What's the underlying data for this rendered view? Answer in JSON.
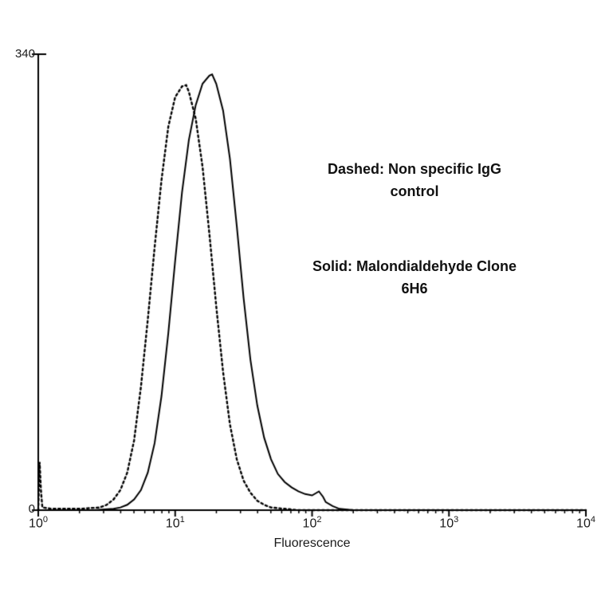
{
  "chart_data": {
    "type": "line",
    "title": "",
    "xlabel": "Fluorescence",
    "ylabel": "",
    "x_scale": "log10",
    "xlim_log10": [
      0,
      4
    ],
    "ylim": [
      0,
      340
    ],
    "grid": false,
    "legend_position": "none",
    "y_ticks": [
      {
        "value": 340,
        "label": "340"
      },
      {
        "value": 0,
        "label": "0"
      }
    ],
    "x_ticks": [
      {
        "log10": 0,
        "label_base": "10",
        "label_exp": "0"
      },
      {
        "log10": 1,
        "label_base": "10",
        "label_exp": "1"
      },
      {
        "log10": 2,
        "label_base": "10",
        "label_exp": "2"
      },
      {
        "log10": 3,
        "label_base": "10",
        "label_exp": "3"
      },
      {
        "log10": 4,
        "label_base": "10",
        "label_exp": "4"
      }
    ],
    "annotations": [
      {
        "name": "dashed-legend",
        "lines": [
          "Dashed: Non specific IgG",
          "control"
        ]
      },
      {
        "name": "solid-legend",
        "lines": [
          "Solid: Malondialdehyde Clone",
          "6H6"
        ]
      }
    ],
    "series": [
      {
        "name": "Non specific IgG control",
        "style": "dotted",
        "color": "#000000",
        "points": [
          [
            0.0,
            0
          ],
          [
            0.01,
            36
          ],
          [
            0.02,
            14
          ],
          [
            0.03,
            2
          ],
          [
            0.1,
            1
          ],
          [
            0.3,
            1
          ],
          [
            0.45,
            2
          ],
          [
            0.5,
            4
          ],
          [
            0.55,
            8
          ],
          [
            0.6,
            15
          ],
          [
            0.65,
            28
          ],
          [
            0.7,
            52
          ],
          [
            0.75,
            92
          ],
          [
            0.8,
            142
          ],
          [
            0.85,
            196
          ],
          [
            0.9,
            246
          ],
          [
            0.95,
            286
          ],
          [
            1.0,
            308
          ],
          [
            1.05,
            316
          ],
          [
            1.08,
            317
          ],
          [
            1.1,
            312
          ],
          [
            1.15,
            292
          ],
          [
            1.2,
            256
          ],
          [
            1.25,
            206
          ],
          [
            1.3,
            152
          ],
          [
            1.35,
            103
          ],
          [
            1.4,
            64
          ],
          [
            1.45,
            38
          ],
          [
            1.5,
            22
          ],
          [
            1.55,
            13
          ],
          [
            1.6,
            7
          ],
          [
            1.65,
            4
          ],
          [
            1.7,
            2
          ],
          [
            1.8,
            1
          ],
          [
            1.9,
            0
          ],
          [
            2.2,
            0
          ],
          [
            4.0,
            0
          ]
        ]
      },
      {
        "name": "Malondialdehyde Clone 6H6",
        "style": "solid",
        "color": "#000000",
        "points": [
          [
            0.0,
            0
          ],
          [
            0.4,
            0
          ],
          [
            0.55,
            1
          ],
          [
            0.6,
            2
          ],
          [
            0.65,
            4
          ],
          [
            0.7,
            8
          ],
          [
            0.75,
            15
          ],
          [
            0.8,
            28
          ],
          [
            0.85,
            50
          ],
          [
            0.9,
            85
          ],
          [
            0.95,
            132
          ],
          [
            1.0,
            186
          ],
          [
            1.05,
            237
          ],
          [
            1.1,
            276
          ],
          [
            1.15,
            302
          ],
          [
            1.2,
            318
          ],
          [
            1.25,
            324
          ],
          [
            1.27,
            325
          ],
          [
            1.3,
            318
          ],
          [
            1.35,
            298
          ],
          [
            1.4,
            262
          ],
          [
            1.45,
            212
          ],
          [
            1.5,
            158
          ],
          [
            1.55,
            112
          ],
          [
            1.6,
            78
          ],
          [
            1.65,
            54
          ],
          [
            1.7,
            38
          ],
          [
            1.75,
            27
          ],
          [
            1.8,
            21
          ],
          [
            1.85,
            17
          ],
          [
            1.9,
            14
          ],
          [
            1.95,
            12
          ],
          [
            2.0,
            11
          ],
          [
            2.05,
            14
          ],
          [
            2.08,
            10
          ],
          [
            2.1,
            6
          ],
          [
            2.15,
            3
          ],
          [
            2.2,
            1
          ],
          [
            2.3,
            0
          ],
          [
            4.0,
            0
          ]
        ]
      }
    ]
  }
}
